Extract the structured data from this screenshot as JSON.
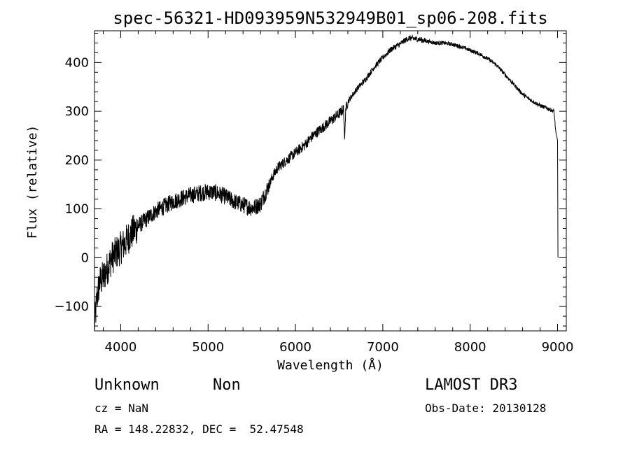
{
  "header": {
    "title": "spec-56321-HD093959N532949B01_sp06-208.fits"
  },
  "info": {
    "class": "Unknown",
    "subclass": "Non",
    "cz": "cz = NaN",
    "radec": "RA = 148.22832, DEC =  52.47548",
    "survey": "LAMOST DR3",
    "obsdate": "Obs-Date: 20130128"
  },
  "chart_data": {
    "type": "line",
    "title": "spec-56321-HD093959N532949B01_sp06-208.fits",
    "xlabel": "Wavelength (Å)",
    "ylabel": "Flux (relative)",
    "xlim": [
      3700,
      9100
    ],
    "ylim": [
      -150,
      465
    ],
    "grid": false,
    "xticks": [
      4000,
      5000,
      6000,
      7000,
      8000,
      9000
    ],
    "yticks": [
      -100,
      0,
      100,
      200,
      300,
      400
    ],
    "line_color": "#000000",
    "series": [
      {
        "x": [
          3700,
          3730,
          3760,
          3800,
          3850,
          3900,
          3950,
          4000,
          4050,
          4100,
          4150,
          4200,
          4300,
          4400,
          4500,
          4600,
          4700,
          4800,
          4900,
          5000,
          5100,
          5200,
          5300,
          5400,
          5500,
          5550,
          5600,
          5650,
          5700,
          5750,
          5800,
          5900,
          6000,
          6100,
          6200,
          6300,
          6400,
          6500,
          6550,
          6563,
          6575,
          6600,
          6700,
          6800,
          6900,
          7000,
          7100,
          7200,
          7250,
          7300,
          7400,
          7500,
          7600,
          7700,
          7800,
          7900,
          8000,
          8100,
          8200,
          8300,
          8400,
          8500,
          8600,
          8700,
          8800,
          8900,
          8960,
          8980,
          9000,
          9005
        ],
        "y": [
          -140,
          -80,
          -50,
          -40,
          -20,
          0,
          10,
          20,
          30,
          45,
          55,
          65,
          80,
          95,
          105,
          115,
          122,
          128,
          132,
          135,
          133,
          125,
          115,
          108,
          102,
          105,
          110,
          130,
          150,
          170,
          185,
          200,
          215,
          230,
          250,
          265,
          280,
          295,
          305,
          240,
          305,
          320,
          345,
          365,
          390,
          410,
          428,
          438,
          445,
          450,
          448,
          444,
          440,
          440,
          437,
          432,
          425,
          418,
          408,
          395,
          375,
          355,
          335,
          322,
          312,
          305,
          300,
          255,
          240,
          0
        ]
      }
    ]
  }
}
